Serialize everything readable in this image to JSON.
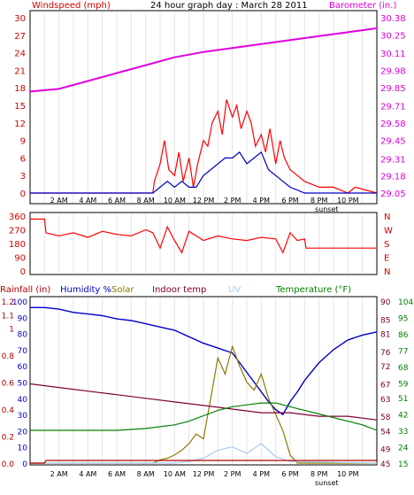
{
  "header": {
    "title": "24 hour graph day : March 28 2011",
    "left_label": "Windspeed (mph)",
    "right_label": "Barometer (in.)"
  },
  "time_axis": {
    "ticks": [
      "2 AM",
      "4 AM",
      "6 AM",
      "8 AM",
      "10 AM",
      "12 PM",
      "2 PM",
      "4 PM",
      "6 PM",
      "8 PM",
      "10 PM"
    ],
    "sunset_label": "sunset"
  },
  "wind_dir_panel": {
    "left_ticks": [
      "360",
      "270",
      "180",
      "90",
      "0"
    ],
    "right_ticks": [
      "N",
      "W",
      "S",
      "E",
      "N"
    ]
  },
  "bottom_legend": {
    "rainfall": "Rainfall (in)",
    "humidity": "Humidity %",
    "solar": "Solar",
    "indoor_temp": "Indoor temp",
    "uv": "UV",
    "temperature": "Temperature (°F)"
  },
  "colors": {
    "wind_speed": "#ff0000",
    "wind_gust": "#0000c8",
    "barometer": "#e000e0",
    "humidity": "#0000c8",
    "solar": "#8c7a00",
    "indoor_temp": "#800030",
    "uv": "#a8c8f0",
    "temperature": "#008000",
    "rainfall": "#b00000"
  },
  "chart_data": [
    {
      "type": "line",
      "x_axis": "hours 0-24",
      "left_ticks": [
        "0",
        "3",
        "6",
        "9",
        "12",
        "15",
        "18",
        "21",
        "24",
        "27",
        "30"
      ],
      "right_ticks": [
        "29.05",
        "29.18",
        "29.31",
        "29.45",
        "29.58",
        "29.71",
        "29.85",
        "29.98",
        "30.11",
        "30.25",
        "30.38"
      ],
      "ylim_left": [
        0,
        30
      ],
      "ylim_right": [
        29.05,
        30.38
      ],
      "grid": "vertical at each hour",
      "series": [
        {
          "name": "Windspeed (mph)",
          "axis": "left",
          "x": [
            0,
            8.5,
            8.6,
            9.0,
            9.3,
            9.6,
            10.0,
            10.3,
            10.6,
            11.0,
            11.3,
            11.6,
            12.0,
            12.3,
            12.6,
            13.0,
            13.3,
            13.6,
            14.0,
            14.3,
            14.6,
            15.0,
            15.3,
            15.6,
            16.0,
            16.3,
            16.6,
            17.0,
            17.3,
            17.6,
            18.0,
            18.5,
            19.0,
            20.0,
            21.0,
            22.0,
            22.5,
            24
          ],
          "y": [
            0,
            0,
            2,
            5,
            9,
            4,
            3,
            7,
            2,
            6,
            1,
            5,
            9,
            8,
            12,
            14,
            10,
            16,
            13,
            15,
            11,
            14,
            12,
            8,
            10,
            7,
            11,
            5,
            9,
            6,
            4,
            3,
            2,
            1,
            1,
            0,
            1,
            0
          ]
        },
        {
          "name": "Gust (mph)",
          "axis": "left",
          "x": [
            0,
            8.5,
            9.0,
            9.5,
            10.0,
            10.5,
            11.0,
            11.5,
            12.0,
            12.5,
            13.0,
            13.5,
            14.0,
            14.5,
            15.0,
            15.5,
            16.0,
            16.5,
            17.0,
            17.5,
            18.0,
            18.5,
            19.0,
            24
          ],
          "y": [
            0,
            0,
            1,
            2,
            1,
            2,
            1,
            1,
            3,
            4,
            5,
            6,
            6,
            7,
            5,
            6,
            7,
            4,
            3,
            2,
            1,
            0.5,
            0,
            0
          ]
        },
        {
          "name": "Barometer (in.)",
          "axis": "right",
          "x": [
            0,
            2,
            4,
            6,
            8,
            10,
            12,
            14,
            16,
            18,
            20,
            22,
            24
          ],
          "y": [
            29.82,
            29.84,
            29.9,
            29.96,
            30.02,
            30.08,
            30.12,
            30.15,
            30.18,
            30.21,
            30.24,
            30.27,
            30.3
          ]
        }
      ]
    },
    {
      "type": "line",
      "x_axis": "hours 0-24",
      "left_ticks": [
        "360",
        "270",
        "180",
        "90",
        "0"
      ],
      "right_ticks": [
        "N",
        "W",
        "S",
        "E",
        "N"
      ],
      "ylim": [
        0,
        360
      ],
      "series": [
        {
          "name": "Wind direction (deg)",
          "x": [
            0,
            1.0,
            1.1,
            2,
            3,
            4,
            5,
            6,
            7,
            8,
            8.5,
            9,
            9.5,
            10,
            10.5,
            11,
            12,
            13,
            14,
            15,
            16,
            17,
            17.5,
            18,
            18.5,
            19,
            19.1,
            24
          ],
          "y": [
            340,
            340,
            250,
            230,
            250,
            220,
            260,
            240,
            230,
            270,
            250,
            150,
            290,
            200,
            120,
            260,
            200,
            230,
            210,
            200,
            220,
            210,
            120,
            250,
            200,
            210,
            150,
            150
          ]
        }
      ]
    },
    {
      "type": "line",
      "x_axis": "hours 0-24",
      "rainfall_ticks": [
        "0.0",
        "0.1",
        "0.2",
        "0.3",
        "0.4",
        "0.5",
        "0.6",
        "0.7",
        "0.8",
        "0.9",
        "1",
        "1.1",
        "1.2"
      ],
      "humidity_ticks": [
        "0",
        "10",
        "20",
        "30",
        "40",
        "50",
        "60",
        "70",
        "80",
        "90",
        "100"
      ],
      "indoor_temp_ticks": [
        "45",
        "49",
        "54",
        "58",
        "63",
        "67",
        "72",
        "76",
        "81",
        "85",
        "90"
      ],
      "temperature_ticks": [
        "15",
        "24",
        "33",
        "42",
        "51",
        "59",
        "68",
        "77",
        "86",
        "95",
        "104"
      ],
      "series": [
        {
          "name": "Humidity %",
          "x": [
            0,
            1,
            2,
            3,
            4,
            5,
            6,
            7,
            8,
            9,
            10,
            11,
            12,
            13,
            14,
            14.5,
            15,
            15.5,
            16,
            16.5,
            17,
            17.5,
            18,
            18.5,
            19,
            20,
            21,
            22,
            23,
            24
          ],
          "y": [
            96,
            96,
            95,
            93,
            92,
            91,
            89,
            88,
            86,
            84,
            82,
            78,
            74,
            71,
            68,
            62,
            56,
            50,
            44,
            38,
            33,
            30,
            38,
            44,
            51,
            62,
            70,
            76,
            79,
            81
          ]
        },
        {
          "name": "Solar",
          "x": [
            0,
            8.5,
            9.0,
            9.5,
            10.0,
            10.5,
            11.0,
            11.5,
            12.0,
            12.5,
            13.0,
            13.5,
            14.0,
            14.5,
            15.0,
            15.5,
            16.0,
            16.5,
            17.0,
            17.5,
            18.0,
            18.5,
            24
          ],
          "y": [
            0,
            0,
            2,
            3,
            5,
            8,
            12,
            18,
            15,
            40,
            65,
            55,
            72,
            60,
            50,
            45,
            55,
            40,
            30,
            20,
            5,
            0,
            0
          ]
        },
        {
          "name": "UV",
          "x": [
            0,
            10.0,
            11.0,
            12.0,
            13.0,
            14.0,
            15.0,
            16.0,
            17.0,
            18.0,
            24
          ],
          "y": [
            0,
            0,
            1,
            3,
            8,
            10,
            6,
            12,
            4,
            1,
            0
          ]
        },
        {
          "name": "Indoor temp",
          "x": [
            0,
            2,
            4,
            6,
            8,
            10,
            12,
            14,
            16,
            18,
            20,
            22,
            24
          ],
          "y": [
            67,
            66,
            65,
            64,
            63,
            62,
            61,
            60,
            59,
            59,
            58,
            58,
            57
          ]
        },
        {
          "name": "Temperature (°F)",
          "x": [
            0,
            2,
            4,
            6,
            8,
            10,
            11,
            12,
            13,
            14,
            15,
            16,
            17,
            18,
            19,
            20,
            21,
            22,
            23,
            24
          ],
          "y": [
            33,
            33,
            33,
            33,
            34,
            36,
            38,
            41,
            44,
            46,
            47,
            48,
            48,
            46,
            44,
            42,
            40,
            38,
            36,
            33
          ]
        },
        {
          "name": "Rainfall (in)",
          "x": [
            0,
            1.0,
            1.1,
            24
          ],
          "y": [
            0.0,
            0.0,
            0.02,
            0.02
          ]
        }
      ]
    }
  ]
}
